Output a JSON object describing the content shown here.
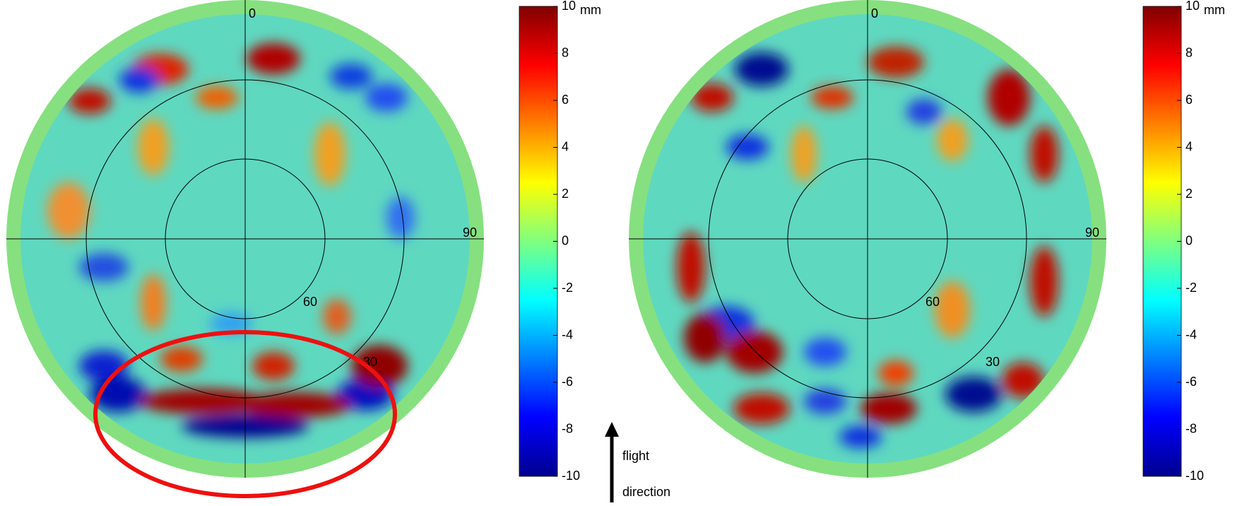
{
  "panels": [
    {
      "polar_labels": [
        "0",
        "90",
        "60",
        "30"
      ],
      "colorbar": {
        "ticks": [
          10,
          8,
          6,
          4,
          2,
          0,
          -2,
          -4,
          -6,
          -8,
          -10
        ],
        "unit": "mm"
      }
    },
    {
      "polar_labels": [
        "0",
        "90",
        "60",
        "30"
      ],
      "colorbar": {
        "ticks": [
          10,
          8,
          6,
          4,
          2,
          0,
          -2,
          -4,
          -6,
          -8,
          -10
        ],
        "unit": "mm"
      }
    }
  ],
  "annotation": [
    "flight",
    "direction"
  ]
}
